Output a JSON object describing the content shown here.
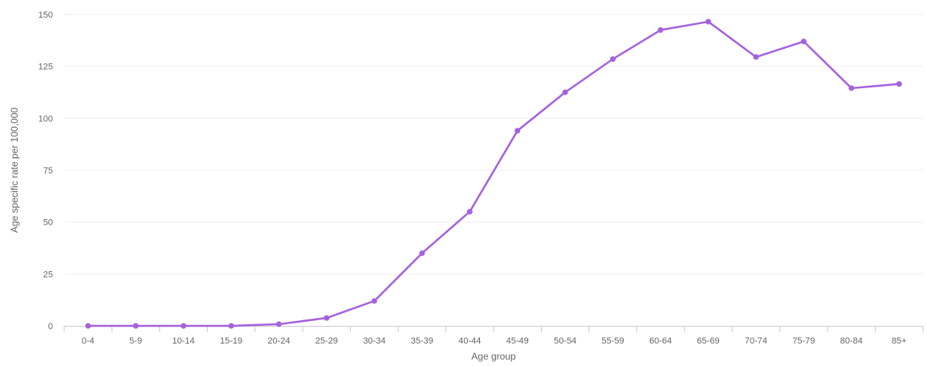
{
  "chart_data": {
    "type": "line",
    "title": "",
    "xlabel": "Age group",
    "ylabel": "Age specific rate per 100,000",
    "categories": [
      "0-4",
      "5-9",
      "10-14",
      "15-19",
      "20-24",
      "25-29",
      "30-34",
      "35-39",
      "40-44",
      "45-49",
      "50-54",
      "55-59",
      "60-64",
      "65-69",
      "70-74",
      "75-79",
      "80-84",
      "85+"
    ],
    "series": [
      {
        "values": [
          0,
          0,
          0,
          0,
          0.8,
          3.8,
          12,
          35,
          55,
          94,
          112.5,
          128.5,
          142.5,
          146.5,
          129.5,
          137,
          114.5,
          116.5
        ],
        "color": "#a463de"
      }
    ],
    "ylim": [
      0,
      150
    ],
    "yticks": [
      0,
      25,
      50,
      75,
      100,
      125,
      150
    ],
    "grid": true,
    "legend": "none"
  }
}
